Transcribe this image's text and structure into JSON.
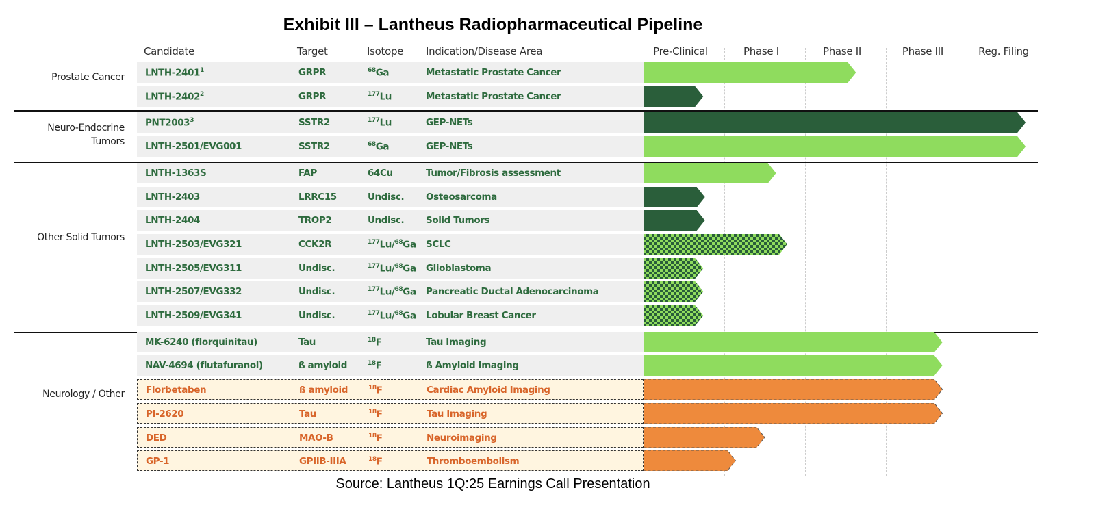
{
  "title": "Exhibit III – Lantheus Radiopharmaceutical Pipeline",
  "source": "Source: Lantheus 1Q:25 Earnings Call Presentation",
  "headers": {
    "candidate": "Candidate",
    "target": "Target",
    "isotope": "Isotope",
    "indication": "Indication/Disease Area"
  },
  "phases": [
    "Pre-Clinical",
    "Phase I",
    "Phase II",
    "Phase III",
    "Reg. Filing"
  ],
  "colors": {
    "light": "#8fdc5e",
    "dark": "#2a5e3a",
    "orange": "#ee8a3c",
    "text_green": "#2e6b3e",
    "text_orange": "#d8652a"
  },
  "groups": [
    {
      "label": "Prostate Cancer",
      "rows": [
        0,
        1
      ]
    },
    {
      "label": "Neuro-Endocrine Tumors",
      "rows": [
        2,
        3
      ]
    },
    {
      "label": "Other Solid Tumors",
      "rows": [
        4,
        5,
        6,
        7,
        8,
        9,
        10
      ]
    },
    {
      "label": "Neurology / Other",
      "rows": [
        11,
        12,
        13,
        14,
        15,
        16
      ]
    }
  ],
  "rows": [
    {
      "candidate": "LNTH-2401",
      "fn": "1",
      "target": "GRPR",
      "isotope": [
        [
          "68",
          "Ga"
        ]
      ],
      "indication": "Metastatic Prostate Cancer",
      "style": "light",
      "progress_phases": 2.63
    },
    {
      "candidate": "LNTH-2402",
      "fn": "2",
      "target": "GRPR",
      "isotope": [
        [
          "177",
          "Lu"
        ]
      ],
      "indication": "Metastatic Prostate Cancer",
      "style": "dark",
      "progress_phases": 0.74
    },
    {
      "candidate": "PNT2003",
      "fn": "3",
      "target": "SSTR2",
      "isotope": [
        [
          "177",
          "Lu"
        ]
      ],
      "indication": "GEP-NETs",
      "style": "dark",
      "progress_phases": 4.73
    },
    {
      "candidate": "LNTH-2501/EVG001",
      "fn": "",
      "target": "SSTR2",
      "isotope": [
        [
          "68",
          "Ga"
        ]
      ],
      "indication": "GEP-NETs",
      "style": "light",
      "progress_phases": 4.73
    },
    {
      "candidate": "LNTH-1363S",
      "fn": "",
      "target": "FAP",
      "isotope": [
        [
          "",
          "64Cu"
        ]
      ],
      "indication": "Tumor/Fibrosis assessment",
      "style": "light",
      "progress_phases": 1.64
    },
    {
      "candidate": "LNTH-2403",
      "fn": "",
      "target": "LRRC15",
      "isotope": [
        [
          "",
          "Undisc."
        ]
      ],
      "indication": "Osteosarcoma",
      "style": "dark",
      "progress_phases": 0.76
    },
    {
      "candidate": "LNTH-2404",
      "fn": "",
      "target": "TROP2",
      "isotope": [
        [
          "",
          "Undisc."
        ]
      ],
      "indication": "Solid Tumors",
      "style": "dark",
      "progress_phases": 0.76
    },
    {
      "candidate": "LNTH-2503/EVG321",
      "fn": "",
      "target": "CCK2R",
      "isotope": [
        [
          "177",
          "Lu/"
        ],
        [
          "68",
          "Ga"
        ]
      ],
      "indication": "SCLC",
      "style": "checker",
      "progress_phases": 1.78
    },
    {
      "candidate": "LNTH-2505/EVG311",
      "fn": "",
      "target": "Undisc.",
      "isotope": [
        [
          "177",
          "Lu/"
        ],
        [
          "68",
          "Ga"
        ]
      ],
      "indication": "Glioblastoma",
      "style": "checker",
      "progress_phases": 0.74
    },
    {
      "candidate": "LNTH-2507/EVG332",
      "fn": "",
      "target": "Undisc.",
      "isotope": [
        [
          "177",
          "Lu/"
        ],
        [
          "68",
          "Ga"
        ]
      ],
      "indication": "Pancreatic Ductal Adenocarcinoma",
      "style": "checker",
      "progress_phases": 0.74
    },
    {
      "candidate": "LNTH-2509/EVG341",
      "fn": "",
      "target": "Undisc.",
      "isotope": [
        [
          "177",
          "Lu/"
        ],
        [
          "68",
          "Ga"
        ]
      ],
      "indication": "Lobular Breast Cancer",
      "style": "checker",
      "progress_phases": 0.74
    },
    {
      "candidate": "MK-6240 (florquinitau)",
      "fn": "",
      "target": "Tau",
      "isotope": [
        [
          "18",
          "F"
        ]
      ],
      "indication": "Tau Imaging",
      "style": "light",
      "progress_phases": 3.7
    },
    {
      "candidate": "NAV-4694 (flutafuranol)",
      "fn": "",
      "target": "ß amyloid",
      "isotope": [
        [
          "18",
          "F"
        ]
      ],
      "indication": "ß Amyloid Imaging",
      "style": "light",
      "progress_phases": 3.7
    },
    {
      "candidate": "Florbetaben",
      "fn": "",
      "target": "ß amyloid",
      "isotope": [
        [
          "18",
          "F"
        ]
      ],
      "indication": "Cardiac Amyloid Imaging",
      "style": "orange",
      "progress_phases": 3.7
    },
    {
      "candidate": "PI-2620",
      "fn": "",
      "target": "Tau",
      "isotope": [
        [
          "18",
          "F"
        ]
      ],
      "indication": "Tau Imaging",
      "style": "orange",
      "progress_phases": 3.7
    },
    {
      "candidate": "DED",
      "fn": "",
      "target": "MAO-B",
      "isotope": [
        [
          "18",
          "F"
        ]
      ],
      "indication": "Neuroimaging",
      "style": "orange",
      "progress_phases": 1.5
    },
    {
      "candidate": "GP-1",
      "fn": "",
      "target": "GPIIB-IIIA",
      "isotope": [
        [
          "18",
          "F"
        ]
      ],
      "indication": "Thromboembolism",
      "style": "orange",
      "progress_phases": 1.14
    }
  ]
}
